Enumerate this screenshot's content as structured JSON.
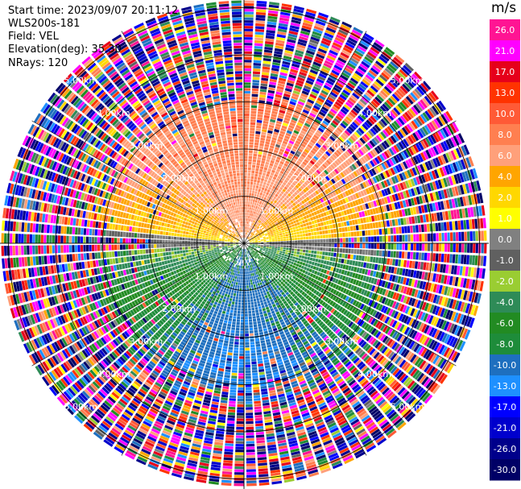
{
  "info": {
    "start_time": "Start time: 2023/09/07 20:11:12",
    "instrument": "WLS200s-181",
    "field": "Field: VEL",
    "elevation": "Elevation(deg): 35.30",
    "nrays": "NRays: 120"
  },
  "chart_data": {
    "type": "heatmap",
    "projection": "polar PPI",
    "field": "VEL",
    "units": "m/s",
    "nrays": 120,
    "elevation_deg": 35.3,
    "range_rings_km": [
      1.0,
      2.0,
      3.0,
      4.0,
      5.0
    ],
    "range_ring_labels": [
      "1.00km",
      "2.00km",
      "3.00km",
      "4.00km",
      "5.00km"
    ],
    "max_range_km": 5.2,
    "description_of_pattern": {
      "north_sector_near": "positive velocities 2 to 8 m/s (yellow-orange-salmon)",
      "south_sector_near": "negative velocities -4 to -10 m/s (green to blue)",
      "east_west_near": "near zero (gray)",
      "beyond_3km": "noisy random values across full scale"
    },
    "colorbar": {
      "label": "m/s",
      "ticks": [
        "26.0",
        "21.0",
        "17.0",
        "13.0",
        "10.0",
        "8.0",
        "6.0",
        "4.0",
        "2.0",
        "1.0",
        "0.0",
        "-1.0",
        "-2.0",
        "-4.0",
        "-6.0",
        "-8.0",
        "-10.0",
        "-13.0",
        "-17.0",
        "-21.0",
        "-26.0",
        "-30.0"
      ],
      "colors": [
        "#ff1493",
        "#ff00ff",
        "#e6001a",
        "#ff3300",
        "#ff5a36",
        "#ff7f50",
        "#ffa07a",
        "#ffa500",
        "#ffd700",
        "#ffff00",
        "#808080",
        "#606060",
        "#9acd32",
        "#2e8b57",
        "#228b22",
        "#1e8c3a",
        "#1e6fbf",
        "#1e90ff",
        "#0000ff",
        "#0000cd",
        "#00008b",
        "#000066"
      ]
    }
  }
}
